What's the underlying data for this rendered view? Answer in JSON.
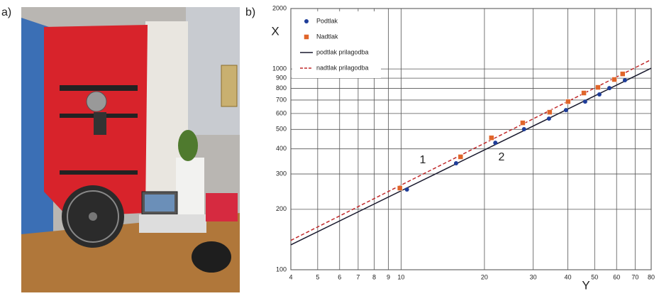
{
  "panel_labels": [
    "a)",
    "b)"
  ],
  "chart_data": {
    "type": "scatter",
    "x_label": "Y",
    "y_label": "X",
    "annotations": [
      "1",
      "2"
    ],
    "log_x": true,
    "log_y": true,
    "grid": true,
    "legend": "upper left",
    "xlim": [
      4,
      80
    ],
    "ylim": [
      100,
      2000
    ],
    "xticks": [
      4,
      5,
      6,
      7,
      8,
      9,
      10,
      20,
      30,
      40,
      50,
      60,
      70,
      80
    ],
    "yticks": [
      100,
      200,
      300,
      400,
      500,
      600,
      700,
      800,
      900,
      1000,
      2000
    ],
    "series": [
      {
        "name": "Podtlak",
        "color": "#1f3d99",
        "marker": "circle",
        "x": [
          10.5,
          15.8,
          21.9,
          27.8,
          34.2,
          39.4,
          46.2,
          52.0,
          56.5,
          64.3
        ],
        "values": [
          251,
          339,
          429,
          501,
          566,
          624,
          688,
          747,
          803,
          879
        ]
      },
      {
        "name": "Nadtlak",
        "color": "#e0652a",
        "marker": "square",
        "x": [
          9.9,
          16.4,
          21.2,
          27.5,
          34.4,
          40.1,
          45.7,
          51.4,
          58.9,
          63.1
        ],
        "values": [
          255,
          365,
          454,
          539,
          609,
          688,
          759,
          810,
          886,
          945
        ]
      },
      {
        "name": "podtlak prilagodba",
        "color": "#1a1a2e",
        "marker": "solid",
        "x": [
          4,
          80
        ],
        "values": [
          133,
          1009
        ]
      },
      {
        "name": "nadtlak prilagodba",
        "color": "#c0282a",
        "marker": "dashed",
        "x": [
          4,
          80
        ],
        "values": [
          140,
          1113
        ]
      }
    ]
  }
}
